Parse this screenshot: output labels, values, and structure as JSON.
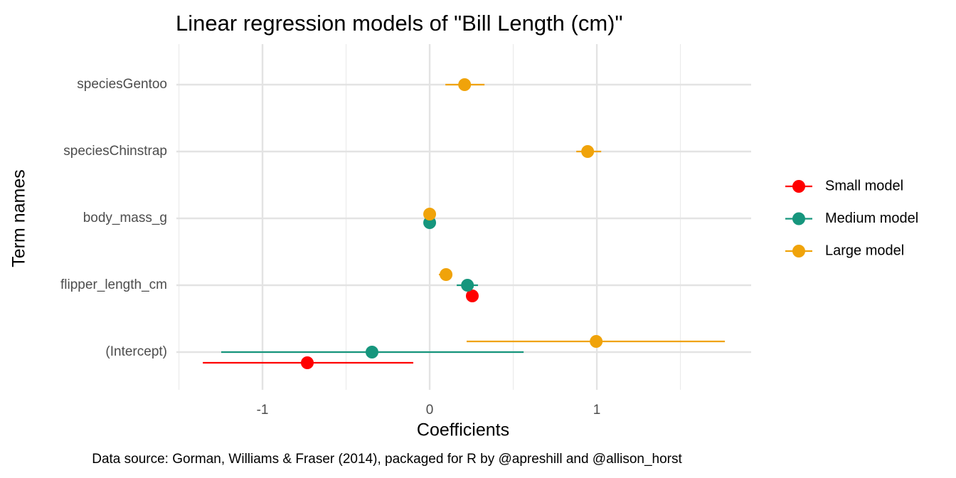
{
  "chart_data": {
    "type": "coefplot",
    "title": "Linear regression models of \"Bill Length (cm)\"",
    "x_label": "Coefficients",
    "y_label": "Term names",
    "caption": "Data source: Gorman, Williams & Fraser (2014), packaged for R by @apreshill and @allison_horst",
    "categories": [
      "speciesGentoo",
      "speciesChinstrap",
      "body_mass_g",
      "flipper_length_cm",
      "(Intercept)"
    ],
    "xlim": [
      -1.515,
      1.923
    ],
    "xticks": [
      -1,
      0,
      1
    ],
    "grid": true,
    "legend_position": "right",
    "series": [
      {
        "name": "Small model",
        "color": "#FF0000",
        "values": [
          null,
          null,
          null,
          0.255,
          -0.732
        ],
        "lower": [
          null,
          null,
          null,
          0.23,
          -1.357
        ],
        "upper": [
          null,
          null,
          null,
          0.28,
          -0.098
        ]
      },
      {
        "name": "Medium model",
        "color": "#16967D",
        "values": [
          null,
          null,
          0.0,
          0.226,
          -0.345
        ],
        "lower": [
          null,
          null,
          0.0,
          0.162,
          -1.247
        ],
        "upper": [
          null,
          null,
          0.0,
          0.289,
          0.562
        ]
      },
      {
        "name": "Large model",
        "color": "#F0A30A",
        "values": [
          0.209,
          0.945,
          0.0,
          0.098,
          0.996
        ],
        "lower": [
          0.094,
          0.877,
          0.0,
          0.055,
          0.221
        ],
        "upper": [
          0.328,
          1.026,
          0.0,
          0.136,
          1.766
        ]
      }
    ]
  }
}
